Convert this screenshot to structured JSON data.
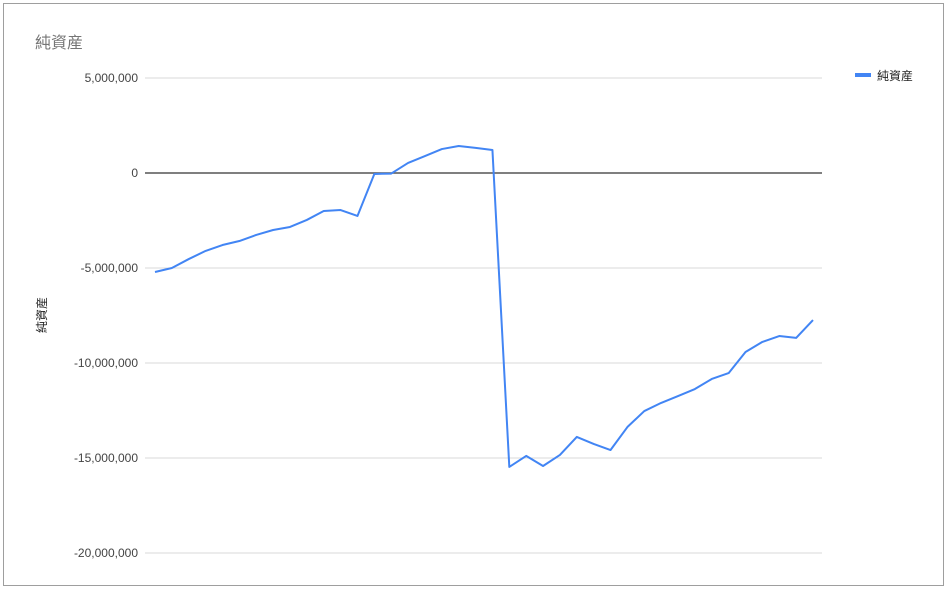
{
  "chart_data": {
    "type": "line",
    "title": "純資産",
    "xlabel": "",
    "ylabel": "純資産",
    "ylim": [
      -20000000,
      5000000
    ],
    "yticks": [
      5000000,
      0,
      -5000000,
      -10000000,
      -15000000,
      -20000000
    ],
    "ytick_labels": [
      "5,000,000",
      "0",
      "-5,000,000",
      "-10,000,000",
      "-15,000,000",
      "-20,000,000"
    ],
    "grid": true,
    "legend_position": "right",
    "series": [
      {
        "name": "純資産",
        "color": "#4285f4",
        "values": [
          -5210000,
          -5000000,
          -4530000,
          -4100000,
          -3790000,
          -3580000,
          -3260000,
          -3000000,
          -2840000,
          -2470000,
          -2000000,
          -1950000,
          -2260000,
          -50000,
          -30000,
          530000,
          890000,
          1260000,
          1420000,
          1320000,
          1210000,
          -15470000,
          -14890000,
          -15420000,
          -14840000,
          -13890000,
          -14260000,
          -14580000,
          -13370000,
          -12530000,
          -12100000,
          -11740000,
          -11370000,
          -10840000,
          -10530000,
          -9420000,
          -8890000,
          -8580000,
          -8680000,
          -7740000
        ]
      }
    ]
  }
}
